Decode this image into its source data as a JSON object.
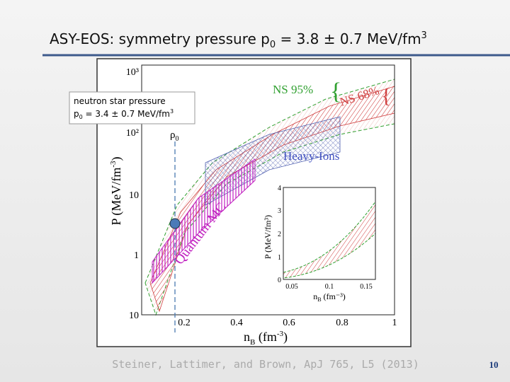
{
  "slide": {
    "title": {
      "text": "ASY-EOS: symmetry pressure p",
      "sub": "0",
      "rest": " = 3.8 ± 0.7 MeV/fm",
      "sup": "3"
    },
    "callout": {
      "line1": "neutron star pressure",
      "p": "p",
      "sub": "0",
      "rest": " = 3.4 ± 0.7 MeV/fm",
      "sup": "3"
    },
    "figure": {
      "labels": {
        "ns95": "NS 95%",
        "ns68": "NS 68%",
        "heavy_ions": "Heavy-Ions",
        "quantum_mc": "Quantum MC",
        "rho": "ρ",
        "rho_sub": "0"
      },
      "y_label": {
        "text": "P (MeV/fm",
        "sup": "-3",
        "end": ")"
      },
      "x_label": {
        "text": "n",
        "sub": "B",
        "rest": " (fm",
        "sup": "-3",
        "end": ")"
      },
      "y_ticks": [
        "10³",
        "10²",
        "10",
        "1",
        "10"
      ],
      "x_ticks": [
        "0.2",
        "0.4",
        "0.6",
        "0.8",
        "1"
      ],
      "inset": {
        "y_label": "P (MeV/fm³)",
        "x_label": "n",
        "x_sub": "B",
        "x_rest": " (fm⁻³)",
        "y_ticks": [
          "0",
          "1",
          "2",
          "3",
          "4"
        ],
        "x_ticks": [
          "0.05",
          "0.1",
          "0.15"
        ]
      }
    },
    "caption": "Steiner, Lattimer, and Brown, ApJ 765, L5 (2013)",
    "page_number": "10"
  }
}
